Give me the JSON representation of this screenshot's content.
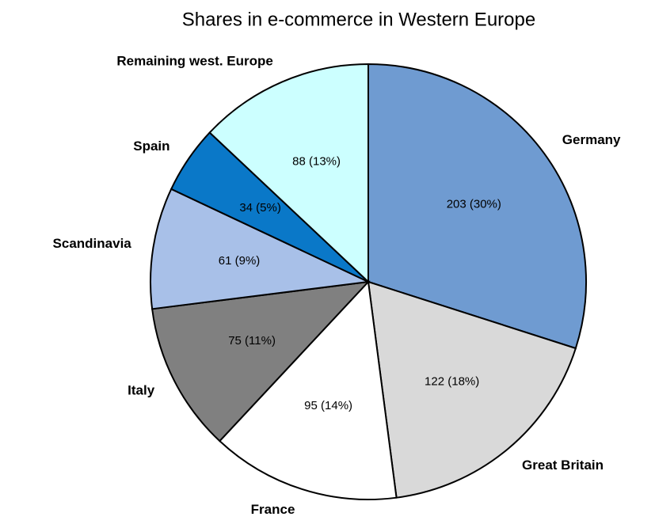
{
  "chart_data": {
    "type": "pie",
    "title": "Shares in e-commerce in Western Europe",
    "categories": [
      "Germany",
      "Great Britain",
      "France",
      "Italy",
      "Scandinavia",
      "Spain",
      "Remaining west. Europe"
    ],
    "values": [
      203,
      122,
      95,
      75,
      61,
      34,
      88
    ],
    "value_labels": [
      "203 (30%)",
      "122 (18%)",
      "95 (14%)",
      "75 (11%)",
      "61 (9%)",
      "34 (5%)",
      "88 (13%)"
    ],
    "colors": [
      "#6f9bd1",
      "#d9d9d9",
      "#ffffff",
      "#808080",
      "#a8c0e8",
      "#0a78c8",
      "#ccffff"
    ]
  }
}
